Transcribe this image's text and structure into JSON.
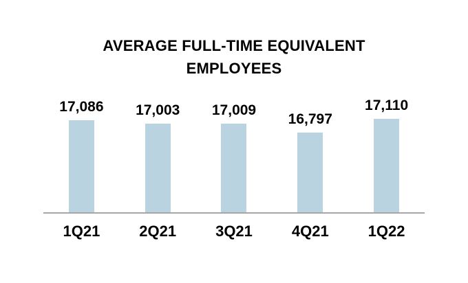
{
  "page": {
    "background_color": "#FFFFFF"
  },
  "chart_data": {
    "type": "bar",
    "title": "AVERAGE FULL-TIME EQUIVALENT EMPLOYEES",
    "categories": [
      "1Q21",
      "2Q21",
      "3Q21",
      "4Q21",
      "1Q22"
    ],
    "values": [
      17086,
      17003,
      17009,
      16797,
      17110
    ],
    "value_labels": [
      "17,086",
      "17,003",
      "17,009",
      "16,797",
      "17,110"
    ],
    "xlabel": "",
    "ylabel": "",
    "ylim": [
      15000,
      17500
    ],
    "grid": false,
    "legend": "none",
    "y_axis_visible": false,
    "x_axis_line": true,
    "bar_color": "#B9D3E0",
    "axis_line_color": "#A6A6A6",
    "text_color": "#000000"
  }
}
